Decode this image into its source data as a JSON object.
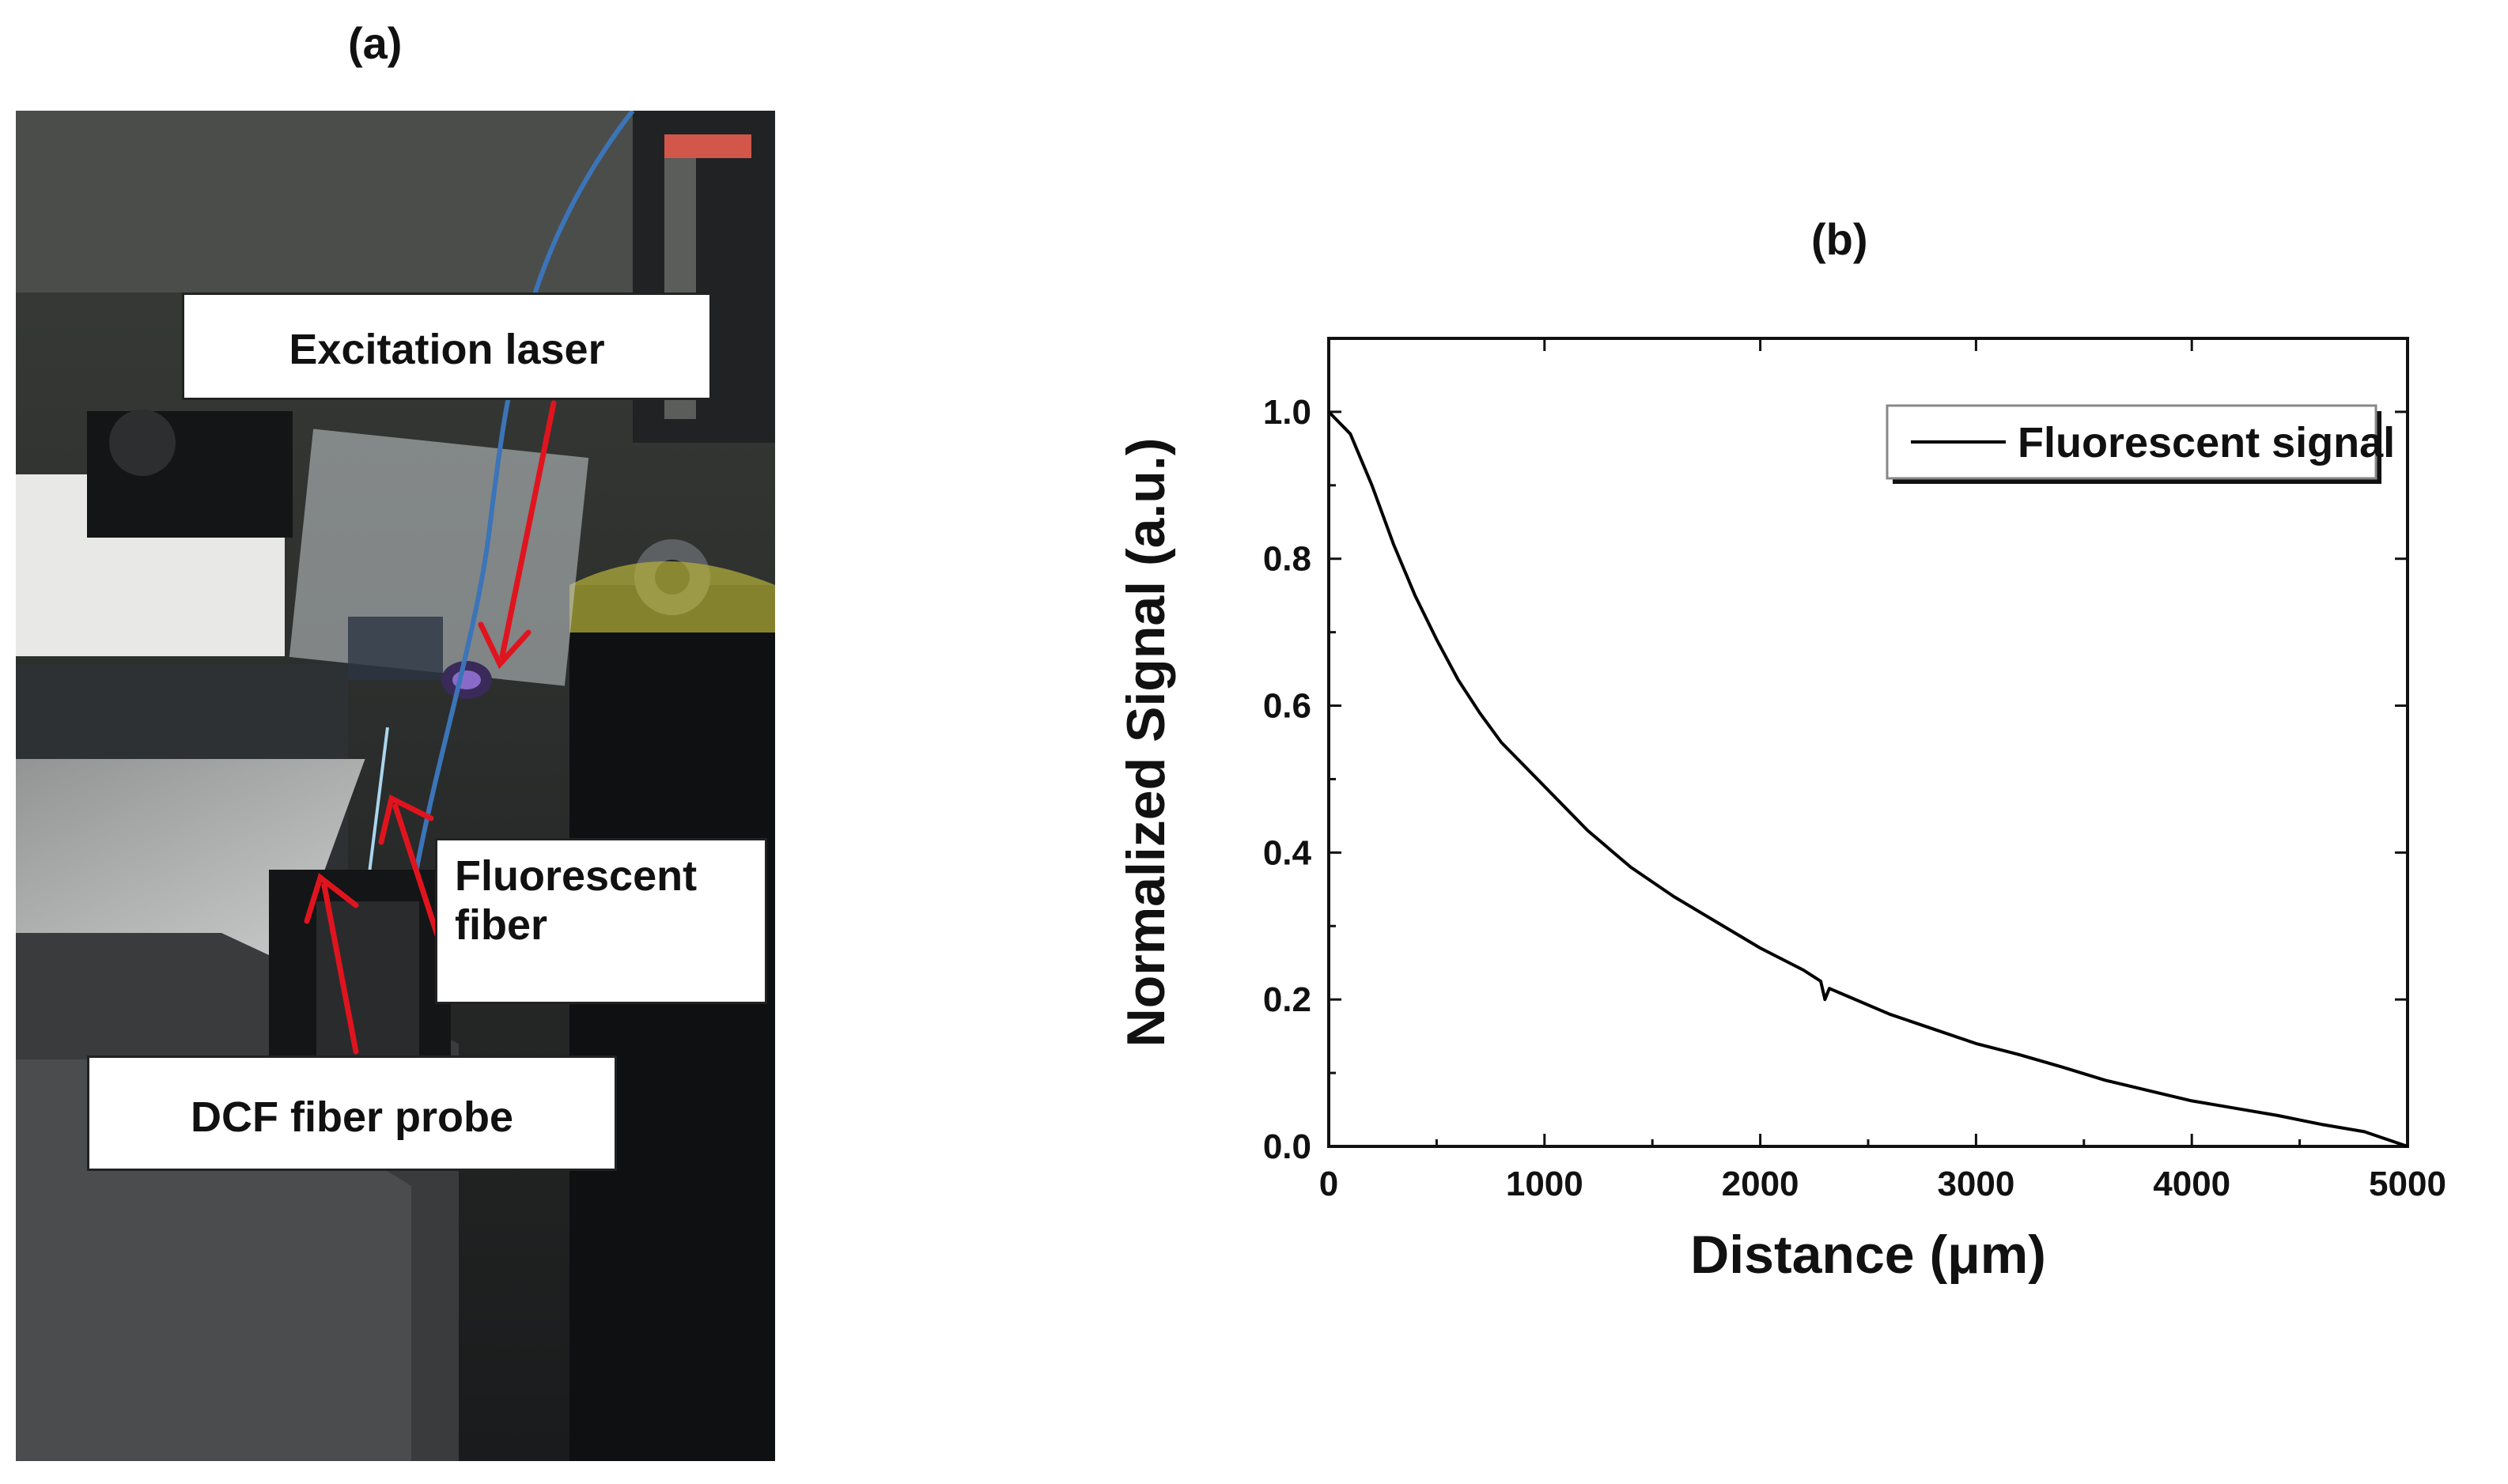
{
  "panel_a": {
    "label": "(a)",
    "callouts": {
      "excitation": "Excitation  laser",
      "fluorescent_line1": "Fluorescent",
      "fluorescent_line2": "fiber",
      "dcf": "DCF fiber probe"
    },
    "arrow_color": "#e0141e"
  },
  "panel_b": {
    "label": "(b)"
  },
  "chart_data": {
    "type": "line",
    "title": "",
    "xlabel": "Distance (μm)",
    "ylabel": "Normalized Signal (a.u.)",
    "xlim": [
      0,
      5000
    ],
    "ylim": [
      0.0,
      1.1
    ],
    "xticks": [
      0,
      1000,
      2000,
      3000,
      4000,
      5000
    ],
    "xtick_labels": [
      "0",
      "1000",
      "2000",
      "3000",
      "4000",
      "5000"
    ],
    "yticks": [
      0.0,
      0.2,
      0.4,
      0.6,
      0.8,
      1.0
    ],
    "ytick_labels": [
      "0.0",
      "0.2",
      "0.4",
      "0.6",
      "0.8",
      "1.0"
    ],
    "grid": false,
    "legend_position": "top-right",
    "series": [
      {
        "name": "Fluorescent signal",
        "color": "#000000",
        "x": [
          0,
          100,
          200,
          300,
          400,
          500,
          600,
          700,
          800,
          1000,
          1200,
          1400,
          1600,
          1800,
          2000,
          2200,
          2280,
          2300,
          2320,
          2400,
          2600,
          2800,
          3000,
          3200,
          3400,
          3600,
          3800,
          4000,
          4200,
          4400,
          4500,
          4600,
          4800,
          5000
        ],
        "y": [
          1.0,
          0.97,
          0.9,
          0.82,
          0.75,
          0.69,
          0.635,
          0.59,
          0.55,
          0.49,
          0.43,
          0.38,
          0.34,
          0.305,
          0.27,
          0.24,
          0.225,
          0.2,
          0.215,
          0.205,
          0.18,
          0.16,
          0.14,
          0.125,
          0.108,
          0.09,
          0.076,
          0.062,
          0.052,
          0.042,
          0.036,
          0.03,
          0.02,
          0.0
        ]
      }
    ]
  }
}
